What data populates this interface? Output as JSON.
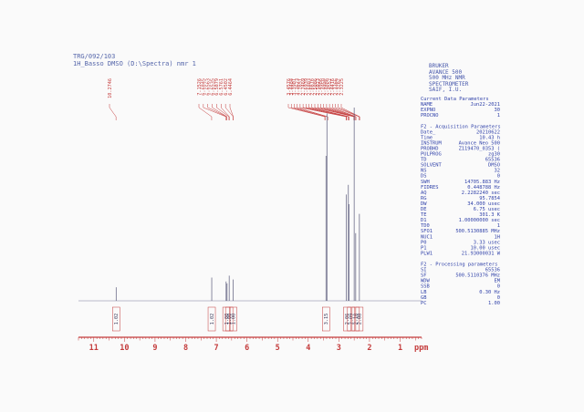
{
  "header": {
    "line1": "TRG/092/103",
    "line2": "1H_Basso DMSO (D:\\Spectra) nmr 1"
  },
  "instrument": [
    "BRUKER",
    "AVANCE 500",
    "500 MHz NMR",
    "SPECTROMETER",
    "SAIF, I.U."
  ],
  "params": [
    {
      "label": "Current Data Parameters",
      "value": ""
    },
    {
      "label": "NAME",
      "value": "Jun22-2021"
    },
    {
      "label": "EXPNO",
      "value": "30"
    },
    {
      "label": "PROCNO",
      "value": "1"
    },
    {
      "label": "",
      "value": ""
    },
    {
      "label": "F2 - Acquisition Parameters",
      "value": ""
    },
    {
      "label": "Date_",
      "value": "20210622"
    },
    {
      "label": "Time",
      "value": "10.43 h"
    },
    {
      "label": "INSTRUM",
      "value": "Avance Neo 500"
    },
    {
      "label": "PROBHD",
      "value": "Z119470_0353 ("
    },
    {
      "label": "PULPROG",
      "value": "zg30"
    },
    {
      "label": "TD",
      "value": "65536"
    },
    {
      "label": "SOLVENT",
      "value": "DMSO"
    },
    {
      "label": "NS",
      "value": "32"
    },
    {
      "label": "DS",
      "value": "0"
    },
    {
      "label": "SWH",
      "value": "14705.883 Hz"
    },
    {
      "label": "FIDRES",
      "value": "0.448788 Hz"
    },
    {
      "label": "AQ",
      "value": "2.2282240 sec"
    },
    {
      "label": "RG",
      "value": "95.7854"
    },
    {
      "label": "DW",
      "value": "34.000 usec"
    },
    {
      "label": "DE",
      "value": "6.75 usec"
    },
    {
      "label": "TE",
      "value": "301.3 K"
    },
    {
      "label": "D1",
      "value": "1.00000000 sec"
    },
    {
      "label": "TD0",
      "value": "1"
    },
    {
      "label": "SFO1",
      "value": "500.5130885 MHz"
    },
    {
      "label": "NUC1",
      "value": "1H"
    },
    {
      "label": "P0",
      "value": "3.33 usec"
    },
    {
      "label": "P1",
      "value": "10.00 usec"
    },
    {
      "label": "PLW1",
      "value": "21.93000031 W"
    },
    {
      "label": "",
      "value": ""
    },
    {
      "label": "F2 - Processing parameters",
      "value": ""
    },
    {
      "label": "SI",
      "value": "65536"
    },
    {
      "label": "SF",
      "value": "500.5110376 MHz"
    },
    {
      "label": "WDW",
      "value": "EM"
    },
    {
      "label": "SSB",
      "value": "0"
    },
    {
      "label": "LB",
      "value": "0.30 Hz"
    },
    {
      "label": "GB",
      "value": "0"
    },
    {
      "label": "PC",
      "value": "1.00"
    }
  ],
  "chart_data": {
    "type": "line",
    "xlabel": "ppm",
    "xlim": [
      11.5,
      0.3
    ],
    "ylim": [
      0,
      1
    ],
    "ticks": [
      11,
      10,
      9,
      8,
      7,
      6,
      5,
      4,
      3,
      2,
      1
    ],
    "peak_labels_group1": [
      "10.2746"
    ],
    "peak_labels_group2": [
      "7.1526",
      "6.6845",
      "6.6563",
      "6.6535",
      "6.5879",
      "6.5761",
      "6.4502",
      "6.4464"
    ],
    "peak_labels_group3": [
      "3.4576",
      "3.4484",
      "3.3901",
      "3.3623",
      "2.7651",
      "2.7469",
      "2.6939",
      "2.6803",
      "2.6676",
      "2.5086",
      "2.5023",
      "2.4986",
      "2.4950",
      "2.4886",
      "2.4552",
      "2.4416",
      "2.3366",
      "2.3262",
      "2.3225"
    ],
    "peaks": [
      {
        "x": 10.27,
        "y": 0.07
      },
      {
        "x": 7.15,
        "y": 0.12
      },
      {
        "x": 6.68,
        "y": 0.1
      },
      {
        "x": 6.65,
        "y": 0.09
      },
      {
        "x": 6.58,
        "y": 0.13
      },
      {
        "x": 6.45,
        "y": 0.11
      },
      {
        "x": 3.42,
        "y": 0.75
      },
      {
        "x": 3.39,
        "y": 0.97
      },
      {
        "x": 2.76,
        "y": 0.55
      },
      {
        "x": 2.69,
        "y": 0.6
      },
      {
        "x": 2.67,
        "y": 0.5
      },
      {
        "x": 2.5,
        "y": 1.0
      },
      {
        "x": 2.45,
        "y": 0.35
      },
      {
        "x": 2.33,
        "y": 0.45
      }
    ],
    "integrals": [
      {
        "x": 10.27,
        "label": "1.02"
      },
      {
        "x": 7.15,
        "label": "1.02"
      },
      {
        "x": 6.67,
        "label": "1.00"
      },
      {
        "x": 6.58,
        "label": "1.00"
      },
      {
        "x": 6.45,
        "label": "1.00"
      },
      {
        "x": 3.42,
        "label": "3.15"
      },
      {
        "x": 2.73,
        "label": "2.06"
      },
      {
        "x": 2.6,
        "label": "2.09"
      },
      {
        "x": 2.45,
        "label": "2.10"
      },
      {
        "x": 2.33,
        "label": "2.08"
      }
    ]
  }
}
